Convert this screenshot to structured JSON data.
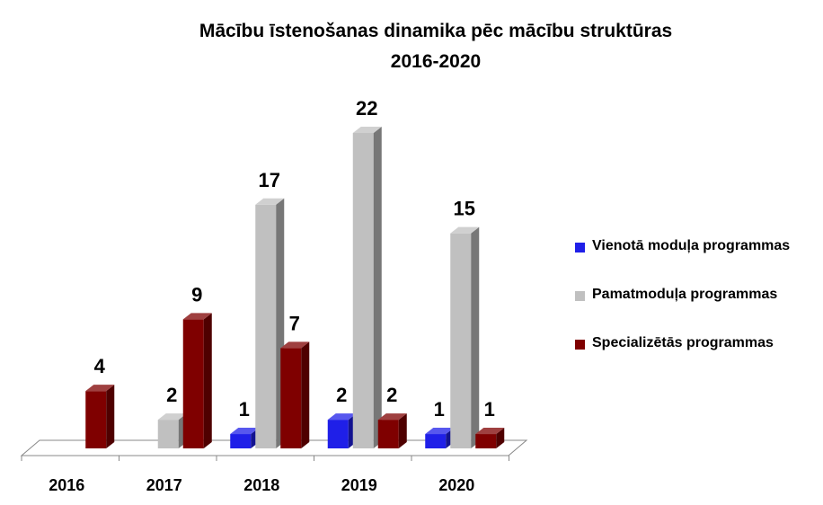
{
  "chart_data": {
    "type": "bar",
    "title": [
      "Mācību īstenošanas dinamika pēc mācību struktūras",
      "2016-2020"
    ],
    "categories": [
      "2016",
      "2017",
      "2018",
      "2019",
      "2020"
    ],
    "series": [
      {
        "name": "Vienotā moduļa programmas",
        "values": [
          null,
          null,
          1,
          2,
          1
        ],
        "color": "#1f1fe8"
      },
      {
        "name": "Pamatmoduļa programmas",
        "values": [
          null,
          2,
          17,
          22,
          15
        ],
        "color": "#c0c0c0"
      },
      {
        "name": "Specializētās programmas",
        "values": [
          4,
          9,
          7,
          2,
          1
        ],
        "color": "#7f0000"
      }
    ],
    "ylim": [
      0,
      22
    ],
    "grid": false,
    "legend": "right",
    "style": "3d-column"
  }
}
